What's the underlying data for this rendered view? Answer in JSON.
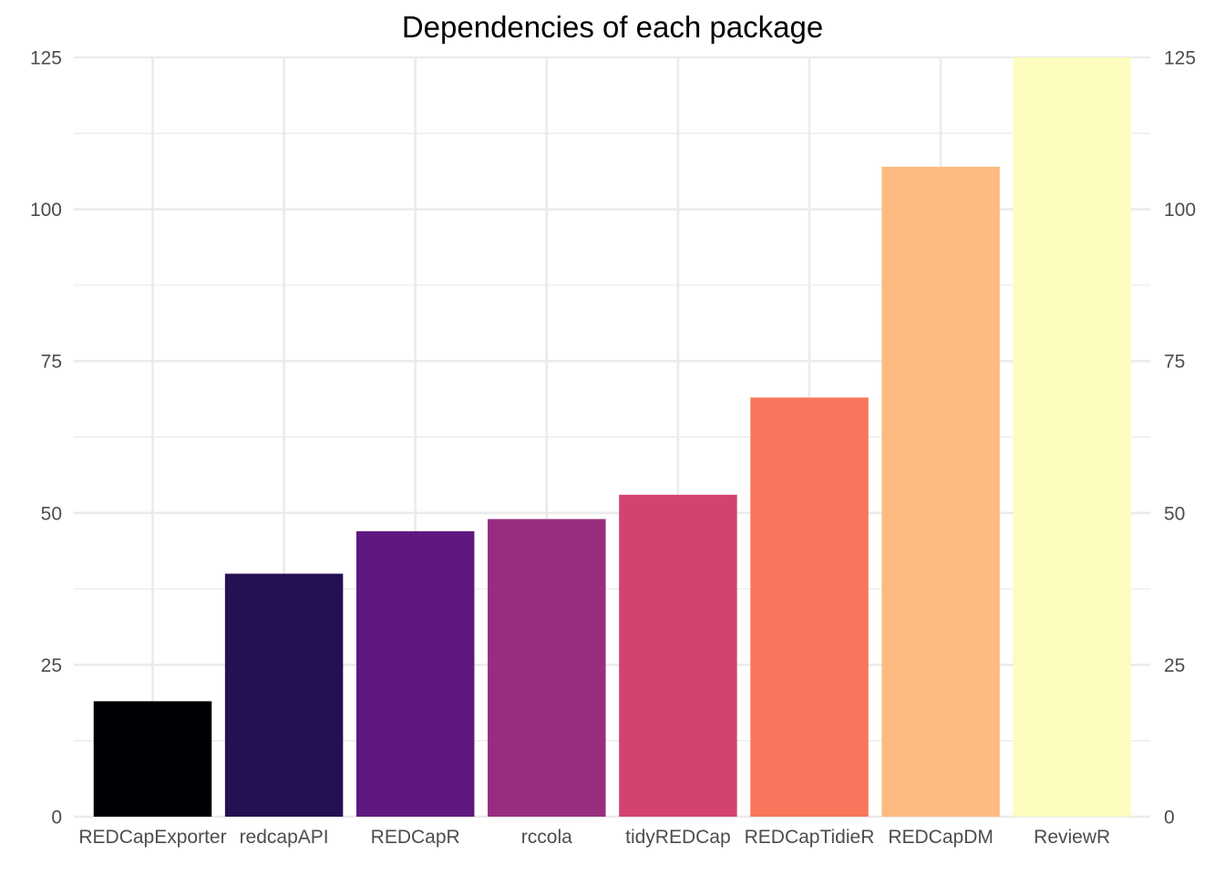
{
  "chart_data": {
    "type": "bar",
    "title": "Dependencies of each package",
    "xlabel": "",
    "ylabel": "",
    "categories": [
      "REDCapExporter",
      "redcapAPI",
      "REDCapR",
      "rccola",
      "tidyREDCap",
      "REDCapTidieR",
      "REDCapDM",
      "ReviewR"
    ],
    "values": [
      19,
      40,
      47,
      49,
      53,
      69,
      107,
      125
    ],
    "colors": [
      "#000004",
      "#231151",
      "#5F187F",
      "#982D80",
      "#D3436E",
      "#F8765C",
      "#FEBA80",
      "#FCFDBF"
    ],
    "ylim": [
      0,
      125
    ],
    "yticks": [
      0,
      25,
      50,
      75,
      100,
      125
    ],
    "ytick_labels": [
      "0",
      "25",
      "50",
      "75",
      "100",
      "125"
    ],
    "secondary_y_axis": true,
    "grid": true,
    "legend": "none"
  }
}
